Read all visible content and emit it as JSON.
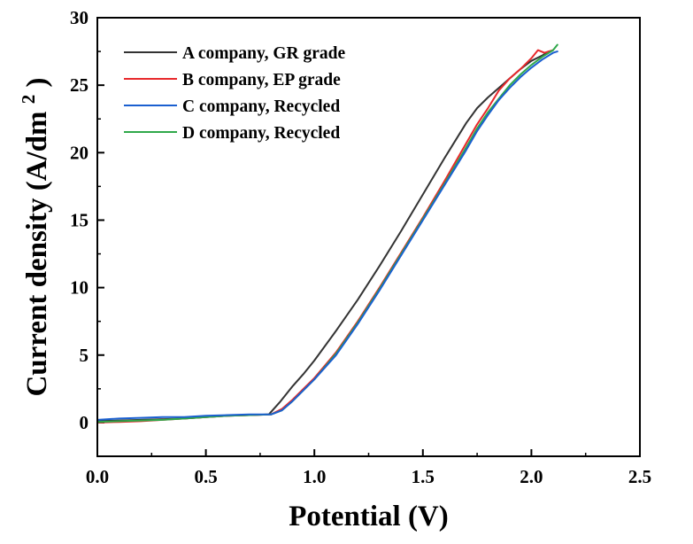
{
  "chart_data": {
    "type": "line",
    "title": "",
    "xlabel": "Potential (V)",
    "ylabel": {
      "main": "Current density (A/dm",
      "superscript": "2",
      "end": ")"
    },
    "xlim": [
      0,
      2.5
    ],
    "ylim": [
      -2.5,
      30
    ],
    "xticks": [
      0.0,
      0.5,
      1.0,
      1.5,
      2.0,
      2.5
    ],
    "xtick_labels": [
      "0.0",
      "0.5",
      "1.0",
      "1.5",
      "2.0",
      "2.5"
    ],
    "yticks": [
      0,
      5,
      10,
      15,
      20,
      25,
      30
    ],
    "ytick_labels": [
      "0",
      "5",
      "10",
      "15",
      "20",
      "25",
      "30"
    ],
    "grid": false,
    "legend_position": "top-left",
    "series": [
      {
        "name": "A company, GR grade",
        "color": "#333333",
        "x": [
          0.0,
          0.1,
          0.2,
          0.3,
          0.4,
          0.5,
          0.6,
          0.7,
          0.79,
          0.84,
          0.9,
          0.95,
          1.0,
          1.1,
          1.2,
          1.3,
          1.4,
          1.5,
          1.6,
          1.7,
          1.75,
          1.8,
          1.85,
          1.9,
          1.95,
          2.0,
          2.05,
          2.08
        ],
        "y": [
          0.1,
          0.15,
          0.2,
          0.25,
          0.3,
          0.4,
          0.5,
          0.55,
          0.6,
          1.5,
          2.7,
          3.6,
          4.6,
          6.8,
          9.1,
          11.6,
          14.2,
          16.9,
          19.6,
          22.2,
          23.3,
          24.1,
          24.8,
          25.5,
          26.2,
          26.8,
          27.2,
          27.5
        ]
      },
      {
        "name": "B company, EP grade",
        "color": "#e8282b",
        "x": [
          0.0,
          0.1,
          0.2,
          0.3,
          0.4,
          0.5,
          0.6,
          0.7,
          0.8,
          0.85,
          0.9,
          0.95,
          1.0,
          1.1,
          1.2,
          1.3,
          1.4,
          1.5,
          1.6,
          1.7,
          1.75,
          1.8,
          1.85,
          1.9,
          1.95,
          2.0,
          2.03,
          2.06,
          2.1
        ],
        "y": [
          0.0,
          0.05,
          0.1,
          0.2,
          0.3,
          0.4,
          0.5,
          0.55,
          0.6,
          1.0,
          1.7,
          2.5,
          3.3,
          5.2,
          7.5,
          10.0,
          12.6,
          15.2,
          17.9,
          20.7,
          22.1,
          23.3,
          24.6,
          25.5,
          26.2,
          27.0,
          27.6,
          27.4,
          27.6
        ]
      },
      {
        "name": "C company, Recycled",
        "color": "#1a5fd0",
        "x": [
          0.0,
          0.1,
          0.2,
          0.3,
          0.4,
          0.5,
          0.6,
          0.7,
          0.8,
          0.85,
          0.9,
          0.95,
          1.0,
          1.1,
          1.2,
          1.3,
          1.4,
          1.5,
          1.6,
          1.7,
          1.75,
          1.8,
          1.85,
          1.9,
          1.95,
          2.0,
          2.05,
          2.1,
          2.12
        ],
        "y": [
          0.2,
          0.3,
          0.35,
          0.4,
          0.4,
          0.5,
          0.55,
          0.6,
          0.6,
          0.9,
          1.6,
          2.4,
          3.2,
          5.0,
          7.3,
          9.8,
          12.4,
          15.0,
          17.6,
          20.2,
          21.6,
          22.8,
          23.9,
          24.8,
          25.6,
          26.3,
          26.9,
          27.4,
          27.5
        ]
      },
      {
        "name": "D company, Recycled",
        "color": "#2fa84a",
        "x": [
          0.0,
          0.1,
          0.2,
          0.3,
          0.4,
          0.5,
          0.6,
          0.7,
          0.8,
          0.85,
          0.9,
          0.95,
          1.0,
          1.1,
          1.2,
          1.3,
          1.4,
          1.5,
          1.6,
          1.7,
          1.75,
          1.8,
          1.85,
          1.9,
          1.95,
          2.0,
          2.05,
          2.1,
          2.12
        ],
        "y": [
          0.05,
          0.1,
          0.15,
          0.2,
          0.3,
          0.4,
          0.5,
          0.55,
          0.6,
          0.9,
          1.6,
          2.4,
          3.2,
          5.1,
          7.4,
          9.9,
          12.5,
          15.1,
          17.7,
          20.4,
          21.8,
          23.0,
          24.0,
          25.0,
          25.8,
          26.5,
          27.1,
          27.6,
          28.0
        ]
      }
    ]
  }
}
